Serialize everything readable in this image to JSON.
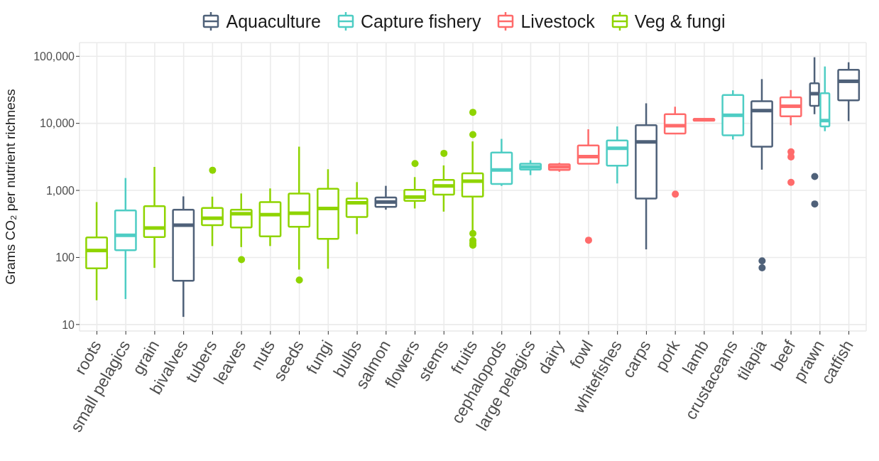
{
  "chart_data": {
    "type": "box",
    "ylabel": "Grams CO₂ per nutrient richness",
    "log": true,
    "grid": true,
    "legend": "top",
    "categories": [
      "roots",
      "small pelagics",
      "grain",
      "bivalves",
      "tubers",
      "leaves",
      "nuts",
      "seeds",
      "fungi",
      "bulbs",
      "salmon",
      "flowers",
      "stems",
      "fruits",
      "cephalopods",
      "large pelagics",
      "dairy",
      "fowl",
      "whitefishes",
      "carps",
      "pork",
      "lamb",
      "crustaceans",
      "tilapia",
      "beef",
      "prawn",
      "catfish"
    ],
    "ylim": [
      8,
      160000
    ],
    "yticks": [
      10,
      100,
      {
        "value": 1000,
        "label": "1,000"
      },
      {
        "value": 10000,
        "label": "10,000"
      },
      {
        "value": 100000,
        "label": "100,000"
      }
    ],
    "series": [
      {
        "name": "Aquaculture",
        "color": "#4f6179",
        "boxes": [
          null,
          null,
          null,
          {
            "low": 13,
            "q1": 45,
            "median": 303,
            "q3": 516,
            "high": 815
          },
          null,
          null,
          null,
          null,
          null,
          null,
          {
            "low": 516,
            "q1": 569,
            "median": 671,
            "q3": 783,
            "high": 1170
          },
          null,
          null,
          null,
          null,
          null,
          null,
          null,
          null,
          {
            "low": 132,
            "q1": 757,
            "median": 5290,
            "q3": 9370,
            "high": 19900
          },
          null,
          null,
          null,
          {
            "low": 2040,
            "q1": 4490,
            "median": 15500,
            "q3": 21400,
            "high": 45700,
            "outliers": [
              89,
              70
            ]
          },
          null,
          {
            "low": 13700,
            "q1": 18300,
            "median": 27700,
            "q3": 39700,
            "high": 96900,
            "outliers": [
              1610,
              628
            ]
          },
          {
            "low": 10800,
            "q1": 22100,
            "median": 42400,
            "q3": 62800,
            "high": 81500
          }
        ]
      },
      {
        "name": "Capture fishery",
        "color": "#4ecdc4",
        "boxes": [
          null,
          {
            "low": 24,
            "q1": 128,
            "median": 214,
            "q3": 504,
            "high": 1530
          },
          null,
          null,
          null,
          null,
          null,
          null,
          null,
          null,
          null,
          null,
          null,
          null,
          {
            "low": 1167,
            "q1": 1247,
            "median": 2019,
            "q3": 3664,
            "high": 5870
          },
          {
            "low": 1690,
            "q1": 2050,
            "median": 2240,
            "q3": 2500,
            "high": 2820
          },
          null,
          null,
          {
            "low": 1270,
            "q1": 2340,
            "median": 4250,
            "q3": 5560,
            "high": 9000
          },
          null,
          null,
          null,
          {
            "low": 5740,
            "q1": 6640,
            "median": 13200,
            "q3": 26400,
            "high": 31100
          },
          null,
          null,
          {
            "low": 7640,
            "q1": 9000,
            "median": 11000,
            "q3": 28200,
            "high": 70500
          },
          null
        ]
      },
      {
        "name": "Livestock",
        "color": "#ff6b6b",
        "boxes": [
          null,
          null,
          null,
          null,
          null,
          null,
          null,
          null,
          null,
          null,
          null,
          null,
          null,
          null,
          null,
          null,
          {
            "low": 1900,
            "q1": 2020,
            "median": 2240,
            "q3": 2460,
            "high": 2580
          },
          {
            "low": 2500,
            "q1": 2500,
            "median": 3190,
            "q3": 4680,
            "high": 8160,
            "outliers": [
              181
            ]
          },
          null,
          null,
          {
            "low": 7050,
            "q1": 7050,
            "median": 9230,
            "q3": 13700,
            "high": 17700,
            "outliers": [
              879
            ]
          },
          {
            "low": 10900,
            "q1": 11000,
            "median": 11300,
            "q3": 11600,
            "high": 11800
          },
          null,
          null,
          {
            "low": 9370,
            "q1": 12700,
            "median": 18000,
            "q3": 24400,
            "high": 31400,
            "outliers": [
              3750,
              3160,
              1320
            ]
          },
          null,
          null
        ]
      },
      {
        "name": "Veg & fungi",
        "color": "#8fd400",
        "boxes": [
          {
            "low": 23,
            "q1": 69,
            "median": 127,
            "q3": 199,
            "high": 670
          },
          null,
          {
            "low": 70,
            "q1": 202,
            "median": 275,
            "q3": 583,
            "high": 2240
          },
          null,
          {
            "low": 148,
            "q1": 303,
            "median": 385,
            "q3": 546,
            "high": 807,
            "outliers": [
              2000
            ]
          },
          {
            "low": 143,
            "q1": 280,
            "median": 449,
            "q3": 516,
            "high": 900,
            "outliers": [
              93
            ]
          },
          {
            "low": 148,
            "q1": 207,
            "median": 435,
            "q3": 671,
            "high": 1070
          },
          {
            "low": 66,
            "q1": 287,
            "median": 457,
            "q3": 900,
            "high": 4490,
            "outliers": [
              46
            ]
          },
          {
            "low": 68,
            "q1": 190,
            "median": 538,
            "q3": 1060,
            "high": 2070
          },
          {
            "low": 223,
            "q1": 401,
            "median": 654,
            "q3": 757,
            "high": 1330
          },
          null,
          {
            "low": 538,
            "q1": 698,
            "median": 796,
            "q3": 1017,
            "high": 1580,
            "outliers": [
              2520
            ]
          },
          {
            "low": 483,
            "q1": 863,
            "median": 1167,
            "q3": 1432,
            "high": 2360,
            "outliers": [
              3570
            ]
          },
          {
            "low": 245,
            "q1": 807,
            "median": 1374,
            "q3": 1800,
            "high": 5380,
            "outliers": [
              14600,
              6800,
              228,
              179,
              164,
              152
            ]
          },
          null,
          null,
          null,
          null,
          null,
          null,
          null,
          null,
          null,
          null,
          null,
          null,
          null
        ]
      }
    ]
  }
}
